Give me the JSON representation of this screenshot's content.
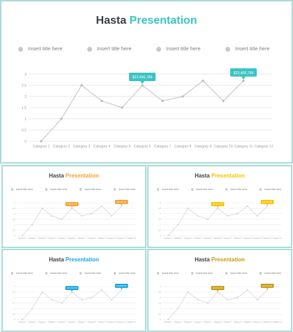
{
  "slides": [
    {
      "title": {
        "word1": "Hasta",
        "word2": "Presentation"
      },
      "accent": "#3cc3c3",
      "callout_text_color": "#ffffff"
    },
    {
      "title": {
        "word1": "Hasta",
        "word2": "Presentation"
      },
      "accent": "#f5a031",
      "callout_text_color": "#ffffff"
    },
    {
      "title": {
        "word1": "Hasta",
        "word2": "Presentation"
      },
      "accent": "#f7c300",
      "callout_text_color": "#ffffff"
    },
    {
      "title": {
        "word1": "Hasta",
        "word2": "Presentation"
      },
      "accent": "#1aa7dc",
      "callout_text_color": "#ffffff"
    },
    {
      "title": {
        "word1": "Hasta",
        "word2": "Presentation"
      },
      "accent": "#c99a12",
      "callout_text_color": "#ffffff"
    }
  ],
  "legend": [
    "Insert title here",
    "Insert title here",
    "Insert title here",
    "Insert title here"
  ],
  "chart_data": {
    "type": "line",
    "categories": [
      "Category 1",
      "Category 2",
      "Category 3",
      "Category 4",
      "Category 5",
      "Category 6",
      "Category 7",
      "Category 8",
      "Category 9",
      "Category 10",
      "Category 11",
      "Category 12"
    ],
    "values": [
      0,
      1,
      2.5,
      1.8,
      1.5,
      2.5,
      1.8,
      2.0,
      2.7,
      1.8,
      2.7,
      null
    ],
    "yticks": [
      3,
      2.5,
      2,
      1.5,
      1,
      0.5,
      0
    ],
    "ylim": [
      0,
      3
    ],
    "grid": true,
    "callouts": [
      {
        "category_index": 5,
        "text": "$23,456,789"
      },
      {
        "category_index": 10,
        "text": "$23,456,789"
      }
    ]
  }
}
